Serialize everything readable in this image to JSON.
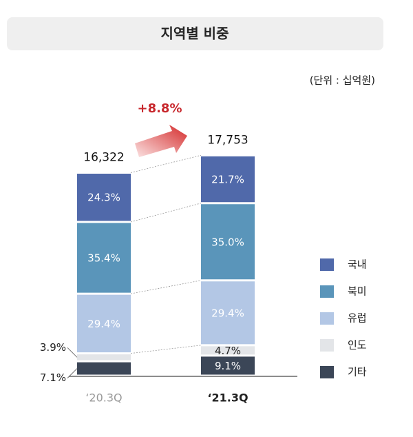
{
  "chart_data": {
    "type": "stacked_bar_percent",
    "title": "지역별 비중",
    "unit_label": "(단위 : 십억원)",
    "annotation": "+8.8%",
    "categories": [
      "‘20.3Q",
      "‘21.3Q"
    ],
    "totals": [
      16322,
      17753
    ],
    "total_labels": [
      "16,322",
      "17,753"
    ],
    "series": [
      {
        "name": "기타",
        "color": "#3b4657",
        "values": [
          7.1,
          9.1
        ],
        "value_labels": [
          "7.1%",
          "9.1%"
        ]
      },
      {
        "name": "인도",
        "color": "#e3e5e8",
        "values": [
          3.9,
          4.7
        ],
        "value_labels": [
          "3.9%",
          "4.7%"
        ]
      },
      {
        "name": "유럽",
        "color": "#b3c7e5",
        "values": [
          29.4,
          29.4
        ],
        "value_labels": [
          "29.4%",
          "29.4%"
        ]
      },
      {
        "name": "북미",
        "color": "#5a95ba",
        "values": [
          35.4,
          35.0
        ],
        "value_labels": [
          "35.4%",
          "35.0%"
        ]
      },
      {
        "name": "국내",
        "color": "#5069aa",
        "values": [
          24.3,
          21.7
        ],
        "value_labels": [
          "24.3%",
          "21.7%"
        ]
      }
    ]
  }
}
